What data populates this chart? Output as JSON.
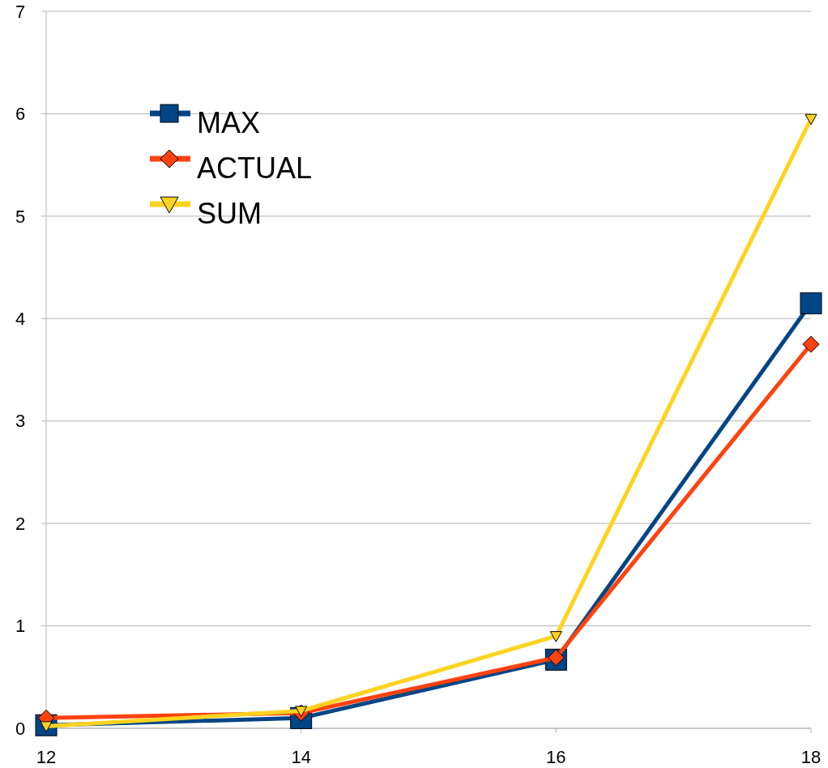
{
  "chart_data": {
    "type": "line",
    "x": [
      12,
      14,
      16,
      18
    ],
    "series": [
      {
        "name": "MAX",
        "color": "#004586",
        "marker": "square",
        "values": [
          0.03,
          0.1,
          0.67,
          4.15
        ]
      },
      {
        "name": "ACTUAL",
        "color": "#ff420e",
        "marker": "diamond",
        "values": [
          0.1,
          0.15,
          0.69,
          3.75
        ]
      },
      {
        "name": "SUM",
        "color": "#ffd320",
        "marker": "triangle",
        "values": [
          0.02,
          0.17,
          0.9,
          5.95
        ]
      }
    ],
    "xlim": [
      12,
      18
    ],
    "xticks": [
      12,
      14,
      16,
      18
    ],
    "ylim": [
      0,
      7
    ],
    "yticks": [
      0,
      1,
      2,
      3,
      4,
      5,
      6,
      7
    ],
    "grid": "y",
    "legend": "top left",
    "line_style": "solid"
  }
}
